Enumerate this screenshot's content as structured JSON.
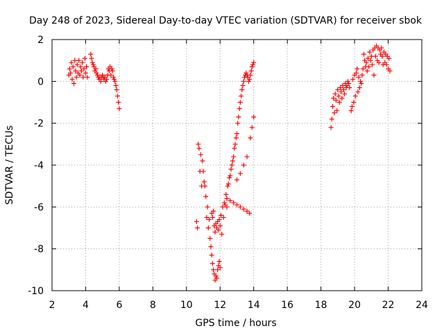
{
  "chart_data": {
    "type": "scatter",
    "title": "Day 248 of 2023, Sidereal Day-to-day VTEC variation (SDTVAR) for receiver sbok",
    "xlabel": "GPS time / hours",
    "ylabel": "SDTVAR / TECUs",
    "xlim": [
      2,
      24
    ],
    "ylim": [
      -10,
      2
    ],
    "xticks": [
      2,
      4,
      6,
      8,
      10,
      12,
      14,
      16,
      18,
      20,
      22,
      24
    ],
    "yticks": [
      -10,
      -8,
      -6,
      -4,
      -2,
      0,
      2
    ],
    "grid": true,
    "marker": "+",
    "color": "#ff0000",
    "series": [
      {
        "name": "SDTVAR",
        "points": [
          [
            3.0,
            0.3
          ],
          [
            3.05,
            0.6
          ],
          [
            3.1,
            0.4
          ],
          [
            3.15,
            0.9
          ],
          [
            3.2,
            0.1
          ],
          [
            3.25,
            0.7
          ],
          [
            3.3,
            -0.1
          ],
          [
            3.35,
            1.0
          ],
          [
            3.4,
            0.5
          ],
          [
            3.45,
            0.2
          ],
          [
            3.5,
            0.8
          ],
          [
            3.55,
            0.4
          ],
          [
            3.6,
            1.0
          ],
          [
            3.65,
            0.3
          ],
          [
            3.7,
            0.7
          ],
          [
            3.75,
            0.5
          ],
          [
            3.8,
            0.9
          ],
          [
            3.85,
            0.2
          ],
          [
            3.9,
            0.6
          ],
          [
            3.95,
            1.1
          ],
          [
            4.0,
            0.4
          ],
          [
            4.05,
            0.7
          ],
          [
            4.1,
            0.2
          ],
          [
            4.3,
            1.3
          ],
          [
            4.35,
            1.1
          ],
          [
            4.4,
            0.9
          ],
          [
            4.45,
            0.8
          ],
          [
            4.5,
            0.7
          ],
          [
            4.55,
            0.5
          ],
          [
            4.6,
            0.6
          ],
          [
            4.65,
            0.4
          ],
          [
            4.7,
            0.3
          ],
          [
            4.75,
            0.2
          ],
          [
            4.8,
            0.1
          ],
          [
            4.85,
            0.2
          ],
          [
            4.9,
            0.0
          ],
          [
            4.95,
            0.2
          ],
          [
            5.0,
            0.3
          ],
          [
            5.05,
            0.2
          ],
          [
            5.1,
            0.1
          ],
          [
            5.15,
            0.2
          ],
          [
            5.2,
            0.0
          ],
          [
            5.25,
            0.1
          ],
          [
            5.3,
            0.3
          ],
          [
            5.35,
            0.6
          ],
          [
            5.4,
            0.5
          ],
          [
            5.45,
            0.7
          ],
          [
            5.5,
            0.3
          ],
          [
            5.55,
            0.6
          ],
          [
            5.6,
            0.5
          ],
          [
            5.65,
            0.2
          ],
          [
            5.7,
            0.1
          ],
          [
            5.75,
            0.0
          ],
          [
            5.8,
            -0.2
          ],
          [
            5.85,
            -0.4
          ],
          [
            5.9,
            -0.7
          ],
          [
            5.95,
            -1.0
          ],
          [
            6.0,
            -1.3
          ],
          [
            10.6,
            -6.7
          ],
          [
            10.65,
            -7.0
          ],
          [
            10.7,
            -3.0
          ],
          [
            10.75,
            -3.2
          ],
          [
            10.8,
            -4.3
          ],
          [
            10.85,
            -3.5
          ],
          [
            10.9,
            -5.0
          ],
          [
            10.95,
            -3.8
          ],
          [
            11.0,
            -4.3
          ],
          [
            11.05,
            -4.8
          ],
          [
            11.1,
            -5.0
          ],
          [
            11.15,
            -5.5
          ],
          [
            11.2,
            -6.5
          ],
          [
            11.25,
            -6.0
          ],
          [
            11.3,
            -7.0
          ],
          [
            11.35,
            -6.6
          ],
          [
            11.4,
            -7.5
          ],
          [
            11.45,
            -7.9
          ],
          [
            11.5,
            -8.3
          ],
          [
            11.55,
            -8.7
          ],
          [
            11.6,
            -9.0
          ],
          [
            11.65,
            -9.2
          ],
          [
            11.7,
            -9.5
          ],
          [
            11.75,
            -9.3
          ],
          [
            11.8,
            -9.4
          ],
          [
            11.85,
            -9.0
          ],
          [
            11.9,
            -8.8
          ],
          [
            11.95,
            -8.6
          ],
          [
            12.0,
            -8.9
          ],
          [
            11.5,
            -6.3
          ],
          [
            11.55,
            -6.5
          ],
          [
            11.6,
            -6.2
          ],
          [
            11.65,
            -6.9
          ],
          [
            11.7,
            -7.2
          ],
          [
            11.75,
            -6.8
          ],
          [
            11.8,
            -7.0
          ],
          [
            11.85,
            -6.7
          ],
          [
            11.9,
            -7.1
          ],
          [
            11.95,
            -6.6
          ],
          [
            12.0,
            -6.9
          ],
          [
            12.05,
            -6.4
          ],
          [
            12.1,
            -7.3
          ],
          [
            12.15,
            -6.0
          ],
          [
            12.2,
            -6.5
          ],
          [
            12.25,
            -5.8
          ],
          [
            12.3,
            -5.9
          ],
          [
            12.35,
            -5.4
          ],
          [
            12.4,
            -5.6
          ],
          [
            12.45,
            -5.0
          ],
          [
            12.5,
            -4.9
          ],
          [
            12.55,
            -4.6
          ],
          [
            12.6,
            -4.5
          ],
          [
            12.65,
            -4.2
          ],
          [
            12.7,
            -4.0
          ],
          [
            12.75,
            -3.8
          ],
          [
            12.8,
            -3.6
          ],
          [
            12.85,
            -3.2
          ],
          [
            12.9,
            -3.0
          ],
          [
            12.95,
            -2.7
          ],
          [
            13.0,
            -2.5
          ],
          [
            13.05,
            -2.0
          ],
          [
            13.1,
            -1.7
          ],
          [
            13.15,
            -1.3
          ],
          [
            13.2,
            -1.0
          ],
          [
            13.25,
            -0.7
          ],
          [
            13.3,
            -0.4
          ],
          [
            13.35,
            -0.2
          ],
          [
            13.4,
            0.0
          ],
          [
            13.45,
            0.2
          ],
          [
            13.5,
            0.3
          ],
          [
            13.55,
            0.4
          ],
          [
            13.6,
            0.3
          ],
          [
            13.65,
            0.2
          ],
          [
            13.7,
            0.0
          ],
          [
            13.75,
            0.1
          ],
          [
            13.8,
            0.3
          ],
          [
            13.85,
            0.5
          ],
          [
            13.9,
            0.7
          ],
          [
            13.95,
            0.8
          ],
          [
            14.0,
            0.9
          ],
          [
            12.4,
            -6.0
          ],
          [
            12.6,
            -5.7
          ],
          [
            12.8,
            -5.8
          ],
          [
            13.0,
            -5.9
          ],
          [
            13.2,
            -6.0
          ],
          [
            13.4,
            -6.1
          ],
          [
            13.6,
            -6.2
          ],
          [
            13.75,
            -6.3
          ],
          [
            13.0,
            -4.7
          ],
          [
            13.2,
            -4.4
          ],
          [
            13.4,
            -4.0
          ],
          [
            13.6,
            -3.6
          ],
          [
            13.8,
            -2.7
          ],
          [
            13.9,
            -2.2
          ],
          [
            14.0,
            -1.7
          ],
          [
            18.6,
            -2.2
          ],
          [
            18.65,
            -1.8
          ],
          [
            18.7,
            -1.2
          ],
          [
            18.75,
            -0.8
          ],
          [
            18.8,
            -1.5
          ],
          [
            18.85,
            -0.6
          ],
          [
            18.9,
            -0.9
          ],
          [
            18.95,
            -1.4
          ],
          [
            19.0,
            -0.4
          ],
          [
            19.05,
            -0.7
          ],
          [
            19.1,
            -1.0
          ],
          [
            19.15,
            -0.3
          ],
          [
            19.2,
            -0.5
          ],
          [
            19.25,
            -0.8
          ],
          [
            19.3,
            -0.2
          ],
          [
            19.35,
            -0.4
          ],
          [
            19.4,
            -0.6
          ],
          [
            19.45,
            -0.1
          ],
          [
            19.5,
            -0.3
          ],
          [
            19.55,
            -0.2
          ],
          [
            19.6,
            0.0
          ],
          [
            19.65,
            -0.1
          ],
          [
            19.7,
            -0.3
          ],
          [
            19.8,
            -1.4
          ],
          [
            19.85,
            -1.2
          ],
          [
            19.9,
            0.1
          ],
          [
            19.95,
            -1.0
          ],
          [
            20.0,
            0.3
          ],
          [
            20.05,
            -0.7
          ],
          [
            20.1,
            0.4
          ],
          [
            20.15,
            0.6
          ],
          [
            20.2,
            -0.5
          ],
          [
            20.25,
            0.2
          ],
          [
            20.3,
            -0.3
          ],
          [
            20.35,
            0.0
          ],
          [
            20.4,
            -0.1
          ],
          [
            20.45,
            0.3
          ],
          [
            20.5,
            0.6
          ],
          [
            20.55,
            1.3
          ],
          [
            20.6,
            1.0
          ],
          [
            20.65,
            0.7
          ],
          [
            20.7,
            0.9
          ],
          [
            20.75,
            0.5
          ],
          [
            20.8,
            1.1
          ],
          [
            20.85,
            0.7
          ],
          [
            20.9,
            1.4
          ],
          [
            20.95,
            1.0
          ],
          [
            21.0,
            1.2
          ],
          [
            21.05,
            0.8
          ],
          [
            21.1,
            1.5
          ],
          [
            21.15,
            0.3
          ],
          [
            21.2,
            1.6
          ],
          [
            21.25,
            1.2
          ],
          [
            21.3,
            1.7
          ],
          [
            21.35,
            1.0
          ],
          [
            21.4,
            1.6
          ],
          [
            21.45,
            0.9
          ],
          [
            21.5,
            1.5
          ],
          [
            21.55,
            1.3
          ],
          [
            21.6,
            1.6
          ],
          [
            21.65,
            1.2
          ],
          [
            21.7,
            0.8
          ],
          [
            21.75,
            1.4
          ],
          [
            21.8,
            0.9
          ],
          [
            21.85,
            1.3
          ],
          [
            21.9,
            0.8
          ],
          [
            21.95,
            1.2
          ],
          [
            22.0,
            0.6
          ],
          [
            22.05,
            1.1
          ],
          [
            22.1,
            0.5
          ]
        ]
      }
    ]
  }
}
